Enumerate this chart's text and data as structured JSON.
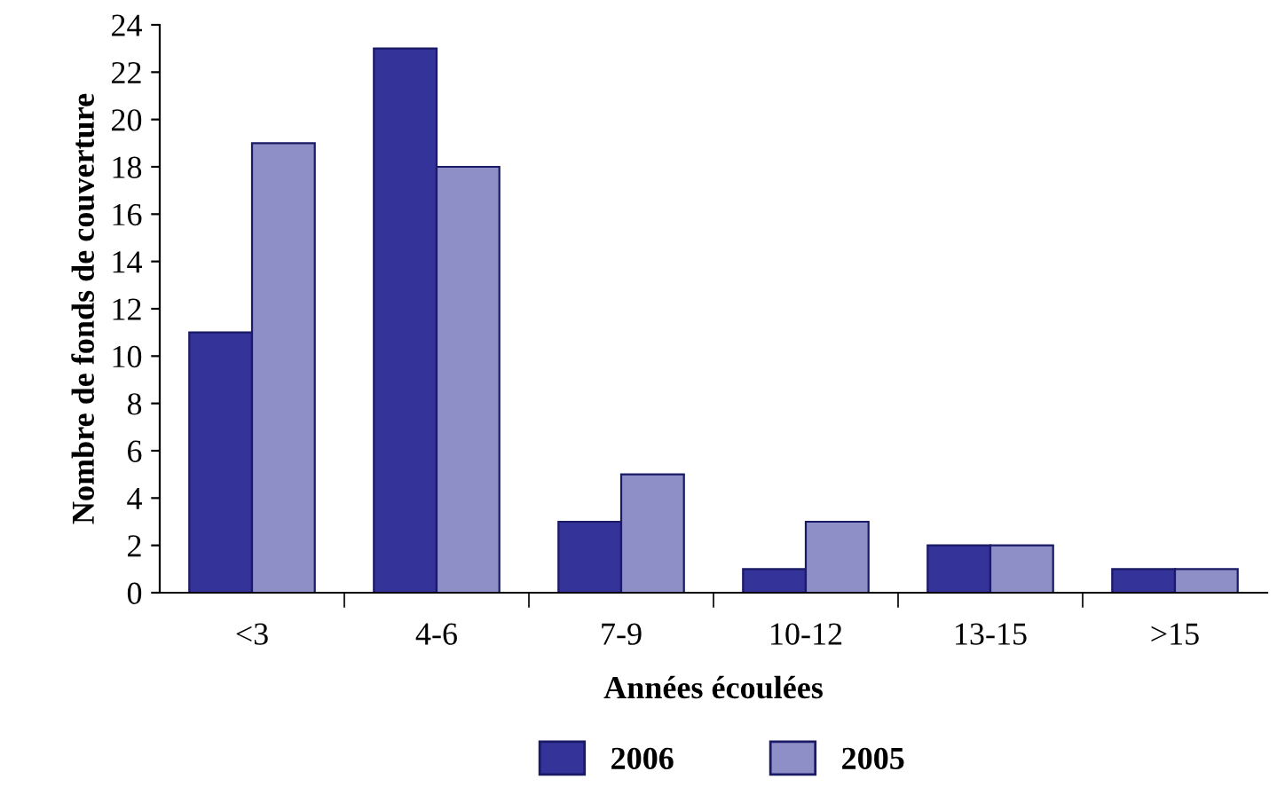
{
  "chart_data": {
    "type": "bar",
    "xlabel": "Années écoulées",
    "ylabel": "Nombre de fonds de couverture",
    "categories": [
      "<3",
      "4-6",
      "7-9",
      "10-12",
      "13-15",
      ">15"
    ],
    "series": [
      {
        "name": "2006",
        "color": "#333399",
        "values": [
          11,
          23,
          3,
          1,
          2,
          1
        ]
      },
      {
        "name": "2005",
        "color": "#8f8fc8",
        "values": [
          19,
          18,
          5,
          3,
          2,
          1
        ]
      }
    ],
    "ylim": [
      0,
      24
    ],
    "yticks": [
      0,
      2,
      4,
      6,
      8,
      10,
      12,
      14,
      16,
      18,
      20,
      22,
      24
    ],
    "grid": false,
    "legend": "bottom"
  }
}
